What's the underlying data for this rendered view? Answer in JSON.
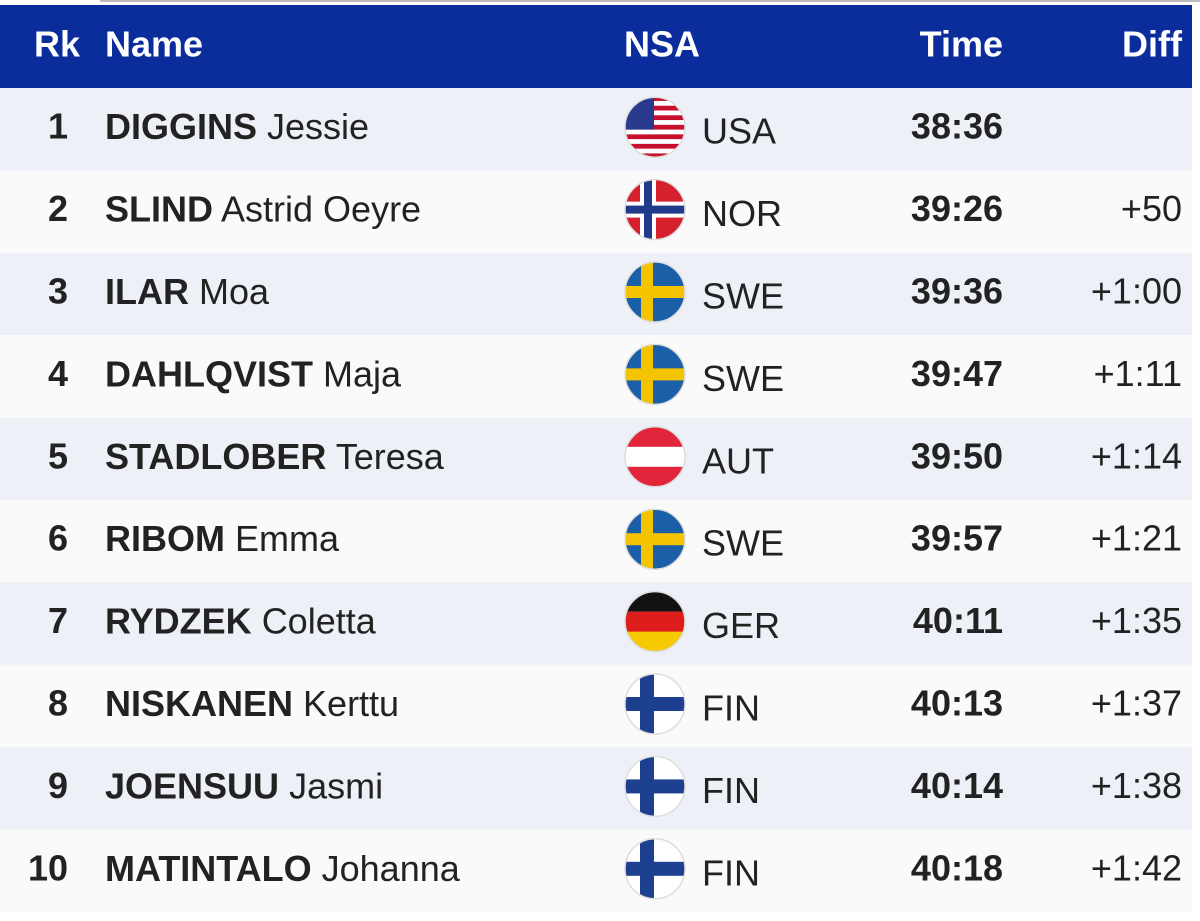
{
  "header": {
    "rank": "Rk",
    "name": "Name",
    "nsa": "NSA",
    "time": "Time",
    "diff": "Diff"
  },
  "rows": [
    {
      "rank": 1,
      "surname": "DIGGINS",
      "given": "Jessie",
      "nsa": "USA",
      "time": "38:36",
      "diff": null
    },
    {
      "rank": 2,
      "surname": "SLIND",
      "given": "Astrid Oeyre",
      "nsa": "NOR",
      "time": "39:26",
      "diff": "+50"
    },
    {
      "rank": 3,
      "surname": "ILAR",
      "given": "Moa",
      "nsa": "SWE",
      "time": "39:36",
      "diff": "+1:00"
    },
    {
      "rank": 4,
      "surname": "DAHLQVIST",
      "given": "Maja",
      "nsa": "SWE",
      "time": "39:47",
      "diff": "+1:11"
    },
    {
      "rank": 5,
      "surname": "STADLOBER",
      "given": "Teresa",
      "nsa": "AUT",
      "time": "39:50",
      "diff": "+1:14"
    },
    {
      "rank": 6,
      "surname": "RIBOM",
      "given": "Emma",
      "nsa": "SWE",
      "time": "39:57",
      "diff": "+1:21"
    },
    {
      "rank": 7,
      "surname": "RYDZEK",
      "given": "Coletta",
      "nsa": "GER",
      "time": "40:11",
      "diff": "+1:35"
    },
    {
      "rank": 8,
      "surname": "NISKANEN",
      "given": "Kerttu",
      "nsa": "FIN",
      "time": "40:13",
      "diff": "+1:37"
    },
    {
      "rank": 9,
      "surname": "JOENSUU",
      "given": "Jasmi",
      "nsa": "FIN",
      "time": "40:14",
      "diff": "+1:38"
    },
    {
      "rank": 10,
      "surname": "MATINTALO",
      "given": "Johanna",
      "nsa": "FIN",
      "time": "40:18",
      "diff": "+1:42"
    }
  ]
}
